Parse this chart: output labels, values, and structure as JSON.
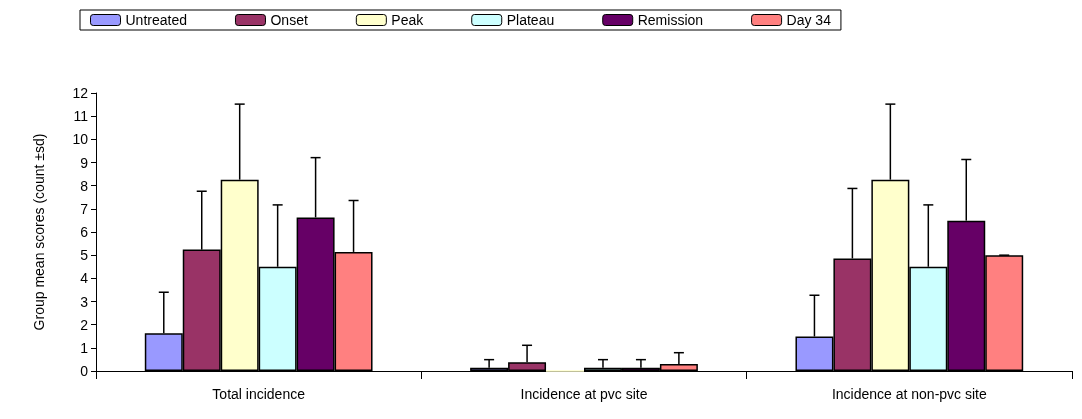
{
  "chart_data": {
    "type": "bar",
    "ylabel": "Group mean scores (count ±sd)",
    "categories": [
      "Total incidence",
      "Incidence at pvc site",
      "Incidence at non-pvc site"
    ],
    "series": [
      {
        "name": "Untreated",
        "color": "#9999ff",
        "values": [
          1.63,
          0.14,
          1.49
        ],
        "errors": [
          [
            1.63,
            3.4
          ],
          [
            0.14,
            0.49
          ],
          [
            1.49,
            3.27
          ]
        ]
      },
      {
        "name": "Onset",
        "color": "#993366",
        "values": [
          5.24,
          0.38,
          4.86
        ],
        "errors": [
          [
            5.24,
            7.76
          ],
          [
            0.38,
            1.11
          ],
          [
            4.86,
            7.88
          ]
        ]
      },
      {
        "name": "Peak",
        "color": "#ffffcc",
        "values": [
          8.26,
          0,
          8.26
        ],
        "errors": [
          [
            8.26,
            11.52
          ],
          null,
          [
            8.26,
            11.52
          ]
        ]
      },
      {
        "name": "Plateau",
        "color": "#ccffff",
        "values": [
          4.5,
          0.14,
          4.5
        ],
        "errors": [
          [
            4.5,
            7.17
          ],
          [
            0.14,
            0.49
          ],
          [
            4.5,
            7.17
          ]
        ]
      },
      {
        "name": "Remission",
        "color": "#660066",
        "values": [
          6.63,
          0.14,
          6.49
        ],
        "errors": [
          [
            6.63,
            9.21
          ],
          [
            0.14,
            0.49
          ],
          [
            6.49,
            9.13
          ]
        ]
      },
      {
        "name": "Day 34",
        "color": "#ff8080",
        "values": [
          5.14,
          0.3,
          5.0
        ],
        "errors": [
          [
            5.14,
            7.36
          ],
          [
            0.3,
            0.79
          ],
          [
            5.0,
            5.0
          ]
        ]
      }
    ],
    "ylim": [
      0,
      12
    ],
    "yticks": [
      0,
      1,
      2,
      3,
      4,
      5,
      6,
      7,
      8,
      9,
      10,
      11,
      12
    ],
    "grid": false,
    "legend": "top"
  }
}
